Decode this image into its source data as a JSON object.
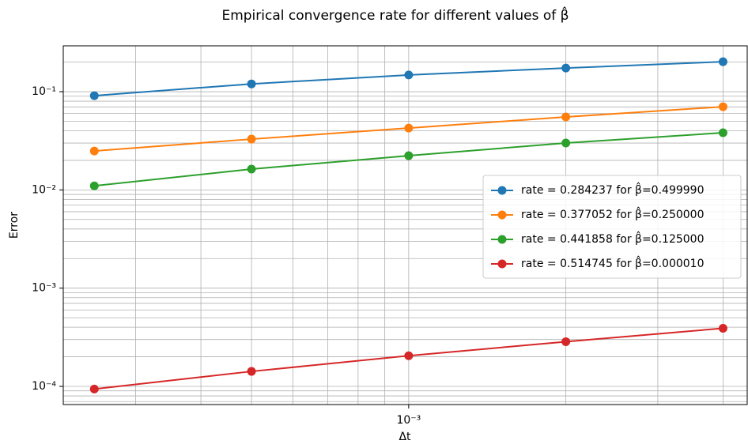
{
  "chart_data": {
    "type": "line",
    "title": "Empirical convergence rate for different values of β̂",
    "xlabel": "Δt",
    "ylabel": "Error",
    "x": [
      0.00025,
      0.0005,
      0.001,
      0.002,
      0.004
    ],
    "xscale": "log",
    "yscale": "log",
    "xlim": [
      0.000218,
      0.00445
    ],
    "ylim": [
      6.53e-05,
      0.293
    ],
    "xticks": [
      {
        "value": 0.001,
        "label": "10⁻³"
      }
    ],
    "yticks": [
      {
        "value": 0.0001,
        "label": "10⁻⁴"
      },
      {
        "value": 0.001,
        "label": "10⁻³"
      },
      {
        "value": 0.01,
        "label": "10⁻²"
      },
      {
        "value": 0.1,
        "label": "10⁻¹"
      }
    ],
    "grid": "both",
    "legend": "center right",
    "series": [
      {
        "name": "rate = 0.284237 for β̂=0.499990",
        "color": "#1f77b4",
        "values": [
          0.091,
          0.12,
          0.148,
          0.174,
          0.202
        ]
      },
      {
        "name": "rate = 0.377052 for β̂=0.250000",
        "color": "#ff7f0e",
        "values": [
          0.0249,
          0.0329,
          0.0426,
          0.0553,
          0.0703
        ]
      },
      {
        "name": "rate = 0.441858 for β̂=0.125000",
        "color": "#2ca02c",
        "values": [
          0.011,
          0.0163,
          0.0223,
          0.03,
          0.0382
        ]
      },
      {
        "name": "rate = 0.514745 for β̂=0.000010",
        "color": "#d62728",
        "values": [
          9.4e-05,
          0.000142,
          0.000205,
          0.000285,
          0.00039
        ]
      }
    ]
  }
}
